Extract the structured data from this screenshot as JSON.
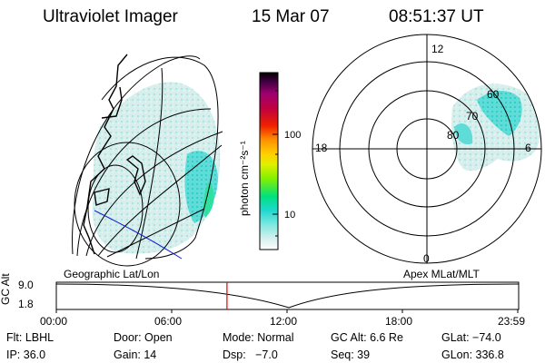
{
  "header": {
    "instrument": "Ultraviolet Imager",
    "date": "15 Mar 07",
    "time": "08:51:37 UT"
  },
  "colorbar": {
    "unit": "photon cm⁻²s⁻¹",
    "tick_labels": [
      "100",
      "10"
    ]
  },
  "polar_plot": {
    "mlt_labels": [
      "12",
      "18",
      "6",
      "0"
    ],
    "mlat_labels": [
      "60",
      "70",
      "80"
    ]
  },
  "panel_labels": {
    "left": "Geographic Lat/Lon",
    "right": "Apex MLat/MLT"
  },
  "altitude_plot": {
    "ylabel": "GC Alt",
    "yticks": [
      "9.0",
      "1.8"
    ],
    "xticks": [
      "00:00",
      "06:00",
      "12:00",
      "18:00",
      "23:59"
    ],
    "current_time_marker_hours": 8.86
  },
  "info": {
    "filter": "Flt: LBHL",
    "door": "Door: Open",
    "mode": "Mode: Normal",
    "gc_alt": "GC Alt: 6.6 Re",
    "glat": "GLat: −74.0",
    "ip": "IP: 36.0",
    "gain": "Gain: 14",
    "dsp": "Dsp:   −7.0",
    "seq": "Seq: 39",
    "glon": "GLon: 336.8"
  },
  "colors": {
    "aurora_low": "#bfe8e4",
    "aurora_mid": "#40e0d8",
    "aurora_high": "#20e8a0",
    "marker": "#e00000",
    "track": "#0000cc"
  }
}
